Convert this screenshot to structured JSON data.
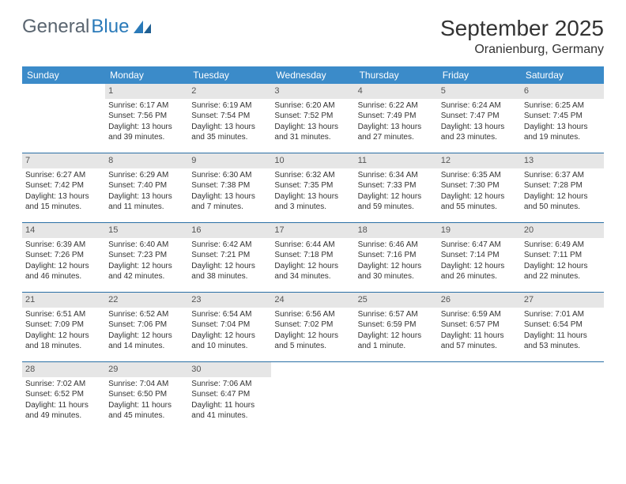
{
  "logo": {
    "part1": "General",
    "part2": "Blue"
  },
  "title": "September 2025",
  "location": "Oranienburg, Germany",
  "colors": {
    "header_bg": "#3b8bc9",
    "header_text": "#ffffff",
    "daynum_bg": "#e6e6e6",
    "row_border": "#2a6fa5",
    "logo_gray": "#5a6570",
    "logo_blue": "#2a7ab9"
  },
  "weekdays": [
    "Sunday",
    "Monday",
    "Tuesday",
    "Wednesday",
    "Thursday",
    "Friday",
    "Saturday"
  ],
  "weeks": [
    [
      null,
      {
        "n": "1",
        "sr": "Sunrise: 6:17 AM",
        "ss": "Sunset: 7:56 PM",
        "d1": "Daylight: 13 hours",
        "d2": "and 39 minutes."
      },
      {
        "n": "2",
        "sr": "Sunrise: 6:19 AM",
        "ss": "Sunset: 7:54 PM",
        "d1": "Daylight: 13 hours",
        "d2": "and 35 minutes."
      },
      {
        "n": "3",
        "sr": "Sunrise: 6:20 AM",
        "ss": "Sunset: 7:52 PM",
        "d1": "Daylight: 13 hours",
        "d2": "and 31 minutes."
      },
      {
        "n": "4",
        "sr": "Sunrise: 6:22 AM",
        "ss": "Sunset: 7:49 PM",
        "d1": "Daylight: 13 hours",
        "d2": "and 27 minutes."
      },
      {
        "n": "5",
        "sr": "Sunrise: 6:24 AM",
        "ss": "Sunset: 7:47 PM",
        "d1": "Daylight: 13 hours",
        "d2": "and 23 minutes."
      },
      {
        "n": "6",
        "sr": "Sunrise: 6:25 AM",
        "ss": "Sunset: 7:45 PM",
        "d1": "Daylight: 13 hours",
        "d2": "and 19 minutes."
      }
    ],
    [
      {
        "n": "7",
        "sr": "Sunrise: 6:27 AM",
        "ss": "Sunset: 7:42 PM",
        "d1": "Daylight: 13 hours",
        "d2": "and 15 minutes."
      },
      {
        "n": "8",
        "sr": "Sunrise: 6:29 AM",
        "ss": "Sunset: 7:40 PM",
        "d1": "Daylight: 13 hours",
        "d2": "and 11 minutes."
      },
      {
        "n": "9",
        "sr": "Sunrise: 6:30 AM",
        "ss": "Sunset: 7:38 PM",
        "d1": "Daylight: 13 hours",
        "d2": "and 7 minutes."
      },
      {
        "n": "10",
        "sr": "Sunrise: 6:32 AM",
        "ss": "Sunset: 7:35 PM",
        "d1": "Daylight: 13 hours",
        "d2": "and 3 minutes."
      },
      {
        "n": "11",
        "sr": "Sunrise: 6:34 AM",
        "ss": "Sunset: 7:33 PM",
        "d1": "Daylight: 12 hours",
        "d2": "and 59 minutes."
      },
      {
        "n": "12",
        "sr": "Sunrise: 6:35 AM",
        "ss": "Sunset: 7:30 PM",
        "d1": "Daylight: 12 hours",
        "d2": "and 55 minutes."
      },
      {
        "n": "13",
        "sr": "Sunrise: 6:37 AM",
        "ss": "Sunset: 7:28 PM",
        "d1": "Daylight: 12 hours",
        "d2": "and 50 minutes."
      }
    ],
    [
      {
        "n": "14",
        "sr": "Sunrise: 6:39 AM",
        "ss": "Sunset: 7:26 PM",
        "d1": "Daylight: 12 hours",
        "d2": "and 46 minutes."
      },
      {
        "n": "15",
        "sr": "Sunrise: 6:40 AM",
        "ss": "Sunset: 7:23 PM",
        "d1": "Daylight: 12 hours",
        "d2": "and 42 minutes."
      },
      {
        "n": "16",
        "sr": "Sunrise: 6:42 AM",
        "ss": "Sunset: 7:21 PM",
        "d1": "Daylight: 12 hours",
        "d2": "and 38 minutes."
      },
      {
        "n": "17",
        "sr": "Sunrise: 6:44 AM",
        "ss": "Sunset: 7:18 PM",
        "d1": "Daylight: 12 hours",
        "d2": "and 34 minutes."
      },
      {
        "n": "18",
        "sr": "Sunrise: 6:46 AM",
        "ss": "Sunset: 7:16 PM",
        "d1": "Daylight: 12 hours",
        "d2": "and 30 minutes."
      },
      {
        "n": "19",
        "sr": "Sunrise: 6:47 AM",
        "ss": "Sunset: 7:14 PM",
        "d1": "Daylight: 12 hours",
        "d2": "and 26 minutes."
      },
      {
        "n": "20",
        "sr": "Sunrise: 6:49 AM",
        "ss": "Sunset: 7:11 PM",
        "d1": "Daylight: 12 hours",
        "d2": "and 22 minutes."
      }
    ],
    [
      {
        "n": "21",
        "sr": "Sunrise: 6:51 AM",
        "ss": "Sunset: 7:09 PM",
        "d1": "Daylight: 12 hours",
        "d2": "and 18 minutes."
      },
      {
        "n": "22",
        "sr": "Sunrise: 6:52 AM",
        "ss": "Sunset: 7:06 PM",
        "d1": "Daylight: 12 hours",
        "d2": "and 14 minutes."
      },
      {
        "n": "23",
        "sr": "Sunrise: 6:54 AM",
        "ss": "Sunset: 7:04 PM",
        "d1": "Daylight: 12 hours",
        "d2": "and 10 minutes."
      },
      {
        "n": "24",
        "sr": "Sunrise: 6:56 AM",
        "ss": "Sunset: 7:02 PM",
        "d1": "Daylight: 12 hours",
        "d2": "and 5 minutes."
      },
      {
        "n": "25",
        "sr": "Sunrise: 6:57 AM",
        "ss": "Sunset: 6:59 PM",
        "d1": "Daylight: 12 hours",
        "d2": "and 1 minute."
      },
      {
        "n": "26",
        "sr": "Sunrise: 6:59 AM",
        "ss": "Sunset: 6:57 PM",
        "d1": "Daylight: 11 hours",
        "d2": "and 57 minutes."
      },
      {
        "n": "27",
        "sr": "Sunrise: 7:01 AM",
        "ss": "Sunset: 6:54 PM",
        "d1": "Daylight: 11 hours",
        "d2": "and 53 minutes."
      }
    ],
    [
      {
        "n": "28",
        "sr": "Sunrise: 7:02 AM",
        "ss": "Sunset: 6:52 PM",
        "d1": "Daylight: 11 hours",
        "d2": "and 49 minutes."
      },
      {
        "n": "29",
        "sr": "Sunrise: 7:04 AM",
        "ss": "Sunset: 6:50 PM",
        "d1": "Daylight: 11 hours",
        "d2": "and 45 minutes."
      },
      {
        "n": "30",
        "sr": "Sunrise: 7:06 AM",
        "ss": "Sunset: 6:47 PM",
        "d1": "Daylight: 11 hours",
        "d2": "and 41 minutes."
      },
      null,
      null,
      null,
      null
    ]
  ]
}
